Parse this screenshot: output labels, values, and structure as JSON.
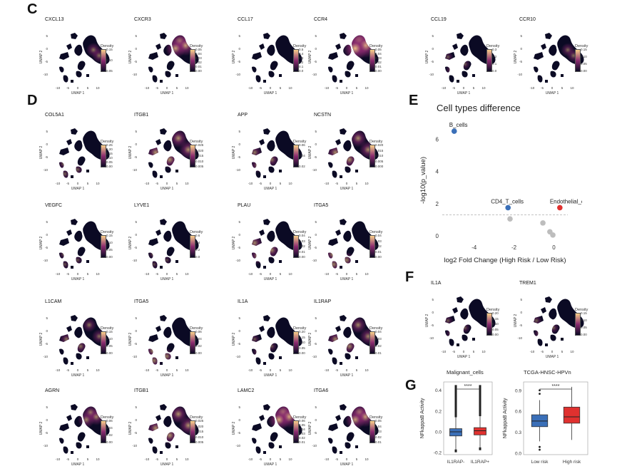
{
  "panels": {
    "C": "C",
    "D": "D",
    "E": "E",
    "F": "F",
    "G": "G"
  },
  "umap": {
    "xlabel": "UMAP 1",
    "ylabel": "UMAP 2",
    "legend_title": "Density",
    "xticks": [
      "-10",
      "-5",
      "0",
      "5",
      "10"
    ],
    "yticks": [
      "5",
      "0",
      "-5",
      "-10"
    ]
  },
  "panel_c": [
    {
      "gene": "CXCL13",
      "ticks": [
        "0.15",
        "0.10",
        "0.05"
      ],
      "intensity": 0.35,
      "hotspot": "center"
    },
    {
      "gene": "CXCR3",
      "ticks": [
        "0.05",
        "0.04",
        "0.03",
        "0.02",
        "0.01",
        "0.00"
      ],
      "intensity": 0.7,
      "hotspot": "upper"
    },
    {
      "gene": "CCL17",
      "ticks": [
        "0.5",
        "0.4",
        "0.3",
        "0.2",
        "0.1",
        "0.0"
      ],
      "intensity": 0.05,
      "hotspot": "none"
    },
    {
      "gene": "CCR4",
      "ticks": [
        "0.05",
        "0.04",
        "0.03",
        "0.02",
        "0.01",
        "0.00"
      ],
      "intensity": 0.95,
      "hotspot": "upper"
    },
    {
      "gene": "CCL19",
      "ticks": [
        "0.3",
        "0.2",
        "0.1",
        "0.0"
      ],
      "intensity": 0.15,
      "hotspot": "left"
    },
    {
      "gene": "CCR10",
      "ticks": [
        "0.15",
        "0.10",
        "0.05",
        "0.00"
      ],
      "intensity": 0.3,
      "hotspot": "center"
    }
  ],
  "panel_d": [
    {
      "gene": "COL5A1",
      "ticks": [
        "0.25",
        "0.20",
        "0.15",
        "0.10",
        "0.05",
        "0.00"
      ],
      "intensity": 0.2,
      "hotspot": "lower"
    },
    {
      "gene": "ITGB1",
      "ticks": [
        "0.025",
        "0.020",
        "0.015",
        "0.010",
        "0.005"
      ],
      "intensity": 0.6,
      "hotspot": "spread"
    },
    {
      "gene": "APP",
      "ticks": [
        "0.06",
        "0.04",
        "0.02"
      ],
      "intensity": 0.4,
      "hotspot": "left"
    },
    {
      "gene": "NCSTN",
      "ticks": [
        "0.020",
        "0.015",
        "0.010",
        "0.005",
        "0.000"
      ],
      "intensity": 0.55,
      "hotspot": "spread"
    },
    {
      "gene": "VEGFC",
      "ticks": [
        "0.15",
        "0.10",
        "0.05",
        "0.00"
      ],
      "intensity": 0.1,
      "hotspot": "lower"
    },
    {
      "gene": "LYVE1",
      "ticks": [
        "0.6",
        "0.4",
        "0.2",
        "0.0"
      ],
      "intensity": 0.05,
      "hotspot": "lower"
    },
    {
      "gene": "PLAU",
      "ticks": [
        "0.04",
        "0.03",
        "0.02",
        "0.01",
        "0.00"
      ],
      "intensity": 0.5,
      "hotspot": "left"
    },
    {
      "gene": "ITGA5",
      "ticks": [
        "0.04",
        "0.03",
        "0.02",
        "0.01",
        "0.00"
      ],
      "intensity": 0.45,
      "hotspot": "lower"
    },
    {
      "gene": "L1CAM",
      "ticks": [
        "0.15",
        "0.10",
        "0.05",
        "0.00"
      ],
      "intensity": 0.35,
      "hotspot": "spread"
    },
    {
      "gene": "ITGA5",
      "ticks": [
        "0.06",
        "0.04",
        "0.02",
        "0.00"
      ],
      "intensity": 0.45,
      "hotspot": "lower"
    },
    {
      "gene": "IL1A",
      "ticks": [
        "0.20",
        "0.15",
        "0.10",
        "0.05",
        "0.00"
      ],
      "intensity": 0.15,
      "hotspot": "left"
    },
    {
      "gene": "IL1RAP",
      "ticks": [
        "0.04",
        "0.03",
        "0.02",
        "0.01"
      ],
      "intensity": 0.5,
      "hotspot": "spread"
    },
    {
      "gene": "AGRN",
      "ticks": [
        "0.06",
        "0.04",
        "0.02",
        "0.00"
      ],
      "intensity": 0.5,
      "hotspot": "upper"
    },
    {
      "gene": "ITGB1",
      "ticks": [
        "0.025",
        "0.020",
        "0.015",
        "0.010",
        "0.005"
      ],
      "intensity": 0.6,
      "hotspot": "spread"
    },
    {
      "gene": "LAMC2",
      "ticks": [
        "0.06",
        "0.05",
        "0.04",
        "0.03",
        "0.02",
        "0.01"
      ],
      "intensity": 0.8,
      "hotspot": "upper"
    },
    {
      "gene": "ITGA6",
      "ticks": [
        "0.05",
        "0.04",
        "0.03",
        "0.02",
        "0.01"
      ],
      "intensity": 0.7,
      "hotspot": "upper"
    }
  ],
  "panel_f": [
    {
      "gene": "IL1A",
      "ticks": [
        "0.20",
        "0.15",
        "0.10",
        "0.05",
        "0.00"
      ],
      "intensity": 0.15,
      "hotspot": "left"
    },
    {
      "gene": "TREM1",
      "ticks": [
        "0.15",
        "0.10",
        "0.05",
        "0.00"
      ],
      "intensity": 0.2,
      "hotspot": "left"
    }
  ],
  "colors": {
    "density_low": "#0b0a24",
    "density_mid": "#8a2a6f",
    "density_high": "#f9d08a",
    "blue": "#3a6fb8",
    "red": "#e0312f",
    "grey": "#bdbdbd"
  },
  "chart_data": [
    {
      "type": "scatter",
      "title": "Cell types difference",
      "xlabel": "log2 Fold Change (High Risk / Low Risk)",
      "ylabel": "-log10(p_value)",
      "xlim": [
        -5.6,
        0.7
      ],
      "ylim": [
        -0.4,
        7.3
      ],
      "xticks": [
        -4,
        -2,
        0
      ],
      "yticks": [
        0,
        2,
        4,
        6
      ],
      "threshold": 1.3,
      "points": [
        {
          "x": -5.0,
          "y": 6.5,
          "label": "B_cells",
          "group": "down"
        },
        {
          "x": -2.3,
          "y": 1.75,
          "label": "CD4_T_cells",
          "group": "down"
        },
        {
          "x": 0.3,
          "y": 1.75,
          "label": "Endothelial_cells",
          "group": "up"
        },
        {
          "x": -2.2,
          "y": 1.05,
          "label": "",
          "group": "ns"
        },
        {
          "x": -0.55,
          "y": 0.8,
          "label": "",
          "group": "ns"
        },
        {
          "x": -0.2,
          "y": 0.25,
          "label": "",
          "group": "ns"
        },
        {
          "x": -0.05,
          "y": 0.05,
          "label": "",
          "group": "ns"
        }
      ]
    },
    {
      "type": "box",
      "title": "Malignant_cells",
      "ylabel": "NFkappaB Activity",
      "categories": [
        "IL1RAP-",
        "IL1RAP+"
      ],
      "ylim": [
        -0.22,
        0.48
      ],
      "yticks": [
        "-0.2",
        "0.0",
        "0.2",
        "0.4"
      ],
      "yvals": [
        -0.2,
        0.0,
        0.2,
        0.4
      ],
      "significance": "****",
      "boxes": [
        {
          "q1": -0.04,
          "median": 0.0,
          "q3": 0.03,
          "whisker_low": -0.17,
          "whisker_high": 0.14,
          "outlier_max": 0.45,
          "color": "#3a6fb8"
        },
        {
          "q1": -0.03,
          "median": 0.01,
          "q3": 0.04,
          "whisker_low": -0.15,
          "whisker_high": 0.15,
          "outlier_max": 0.45,
          "color": "#e0312f"
        }
      ]
    },
    {
      "type": "box",
      "title": "TCGA-HNSC-HPVn",
      "ylabel": "NFkappaB Activity",
      "categories": [
        "Low risk",
        "High risk"
      ],
      "ylim": [
        -0.02,
        1.02
      ],
      "yticks": [
        "0.0",
        "0.3",
        "0.6",
        "0.9"
      ],
      "yvals": [
        0.0,
        0.3,
        0.6,
        0.9
      ],
      "significance": "****",
      "boxes": [
        {
          "q1": 0.38,
          "median": 0.46,
          "q3": 0.55,
          "whisker_low": 0.17,
          "whisker_high": 0.76,
          "outliers": [
            0.05,
            0.09,
            0.85,
            0.9
          ],
          "color": "#3a6fb8"
        },
        {
          "q1": 0.43,
          "median": 0.52,
          "q3": 0.66,
          "whisker_low": 0.19,
          "whisker_high": 0.95,
          "outliers": [],
          "color": "#e0312f"
        }
      ]
    }
  ]
}
